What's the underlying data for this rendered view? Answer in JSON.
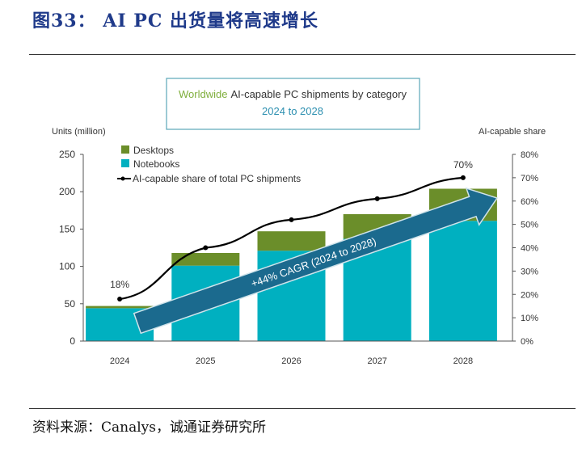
{
  "figure_title": "图33：  AI PC 出货量将高速增长",
  "source": "资料来源：Canalys，诚通证券研究所",
  "chart_data": {
    "type": "bar",
    "stacked": true,
    "title_part1": "Worldwide",
    "title_part2": "AI-capable PC shipments by category",
    "subtitle": "2024 to 2028",
    "ylabel": "Units (million)",
    "y2label": "AI-capable share",
    "categories": [
      "2024",
      "2025",
      "2026",
      "2027",
      "2028"
    ],
    "ylim": [
      0,
      250
    ],
    "yticks": [
      "0",
      "50",
      "100",
      "150",
      "200",
      "250"
    ],
    "y2lim": [
      0,
      80
    ],
    "y2ticks": [
      "0%",
      "10%",
      "20%",
      "30%",
      "40%",
      "50%",
      "60%",
      "70%",
      "80%"
    ],
    "series": [
      {
        "name": "Notebooks",
        "values": [
          44,
          101,
          121,
          137,
          161
        ],
        "color": "#00b0c0"
      },
      {
        "name": "Desktops",
        "values": [
          3,
          17,
          26,
          33,
          43
        ],
        "color": "#6b8e2a"
      }
    ],
    "line_series": {
      "name": "AI-capable share of total PC shipments",
      "values": [
        18,
        40,
        52,
        61,
        70
      ],
      "unit": "%",
      "color": "#000000"
    },
    "data_labels": {
      "first": "18%",
      "last": "70%"
    },
    "annotation": {
      "text": "+44% CAGR (2024 to 2028)",
      "color": "#1b6a8e"
    },
    "legend_position": "top-left",
    "grid": false
  }
}
